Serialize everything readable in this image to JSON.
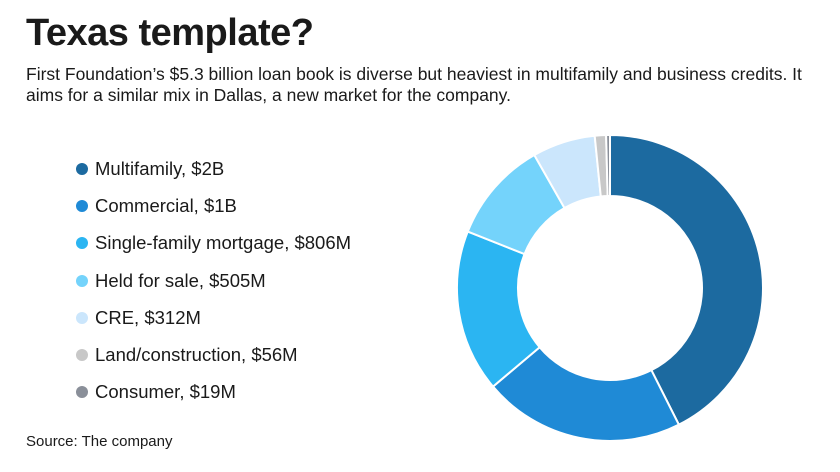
{
  "header": {
    "title": "Texas template?",
    "subtitle": "First Foundation’s $5.3 billion loan book is diverse but heaviest in multifamily and business credits. It aims for a similar mix in Dallas, a new market for the company."
  },
  "footer": {
    "source": "Source: The company"
  },
  "chart_data": {
    "type": "pie",
    "donut": true,
    "title": "Texas template?",
    "legend_position": "left",
    "slices": [
      {
        "label": "Multifamily, $2B",
        "value": 2000,
        "color": "#1c6aa0"
      },
      {
        "label": "Commercial, $1B",
        "value": 1000,
        "color": "#1f8ad6"
      },
      {
        "label": "Single-family mortgage, $806M",
        "value": 806,
        "color": "#2bb5f2"
      },
      {
        "label": "Held for sale, $505M",
        "value": 505,
        "color": "#74d3fb"
      },
      {
        "label": "CRE, $312M",
        "value": 312,
        "color": "#cbe6fc"
      },
      {
        "label": "Land/construction, $56M",
        "value": 56,
        "color": "#c8c8c8"
      },
      {
        "label": "Consumer, $19M",
        "value": 19,
        "color": "#8a8f99"
      }
    ]
  }
}
